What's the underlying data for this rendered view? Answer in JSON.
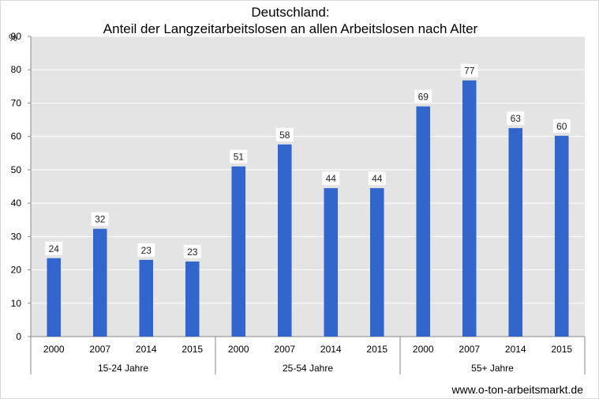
{
  "chart_data": {
    "type": "bar",
    "title": "Deutschland:",
    "subtitle": "Anteil der Langzeitarbeitslosen an allen Arbeitslosen nach Alter",
    "ylabel": "%",
    "ylim": [
      0,
      90
    ],
    "yticks": [
      0,
      10,
      20,
      30,
      40,
      50,
      60,
      70,
      80,
      90
    ],
    "grid": true,
    "groups": [
      {
        "name": "15-24 Jahre",
        "categories": [
          "2000",
          "2007",
          "2014",
          "2015"
        ],
        "values": [
          23.5,
          32.3,
          23,
          22.5
        ],
        "labels": [
          "24",
          "32",
          "23",
          "23"
        ]
      },
      {
        "name": "25-54 Jahre",
        "categories": [
          "2000",
          "2007",
          "2014",
          "2015"
        ],
        "values": [
          51,
          57.6,
          44.5,
          44.5
        ],
        "labels": [
          "51",
          "58",
          "44",
          "44"
        ]
      },
      {
        "name": "55+ Jahre",
        "categories": [
          "2000",
          "2007",
          "2014",
          "2015"
        ],
        "values": [
          69,
          76.8,
          62.5,
          60.2
        ],
        "labels": [
          "69",
          "77",
          "63",
          "60"
        ]
      }
    ],
    "bar_color": "#3366cc",
    "plot_background": "#e4e4e4"
  },
  "footer": "www.o-ton-arbeitsmarkt.de"
}
